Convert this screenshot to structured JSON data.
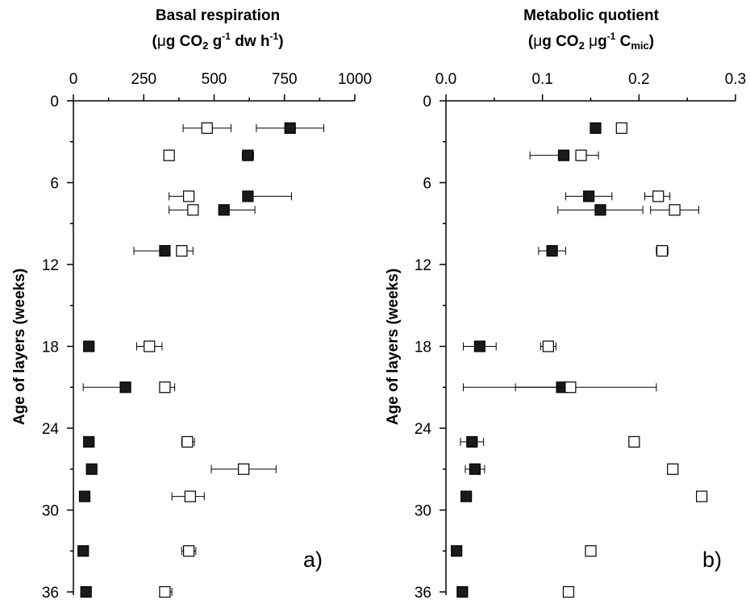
{
  "chart_data": [
    {
      "type": "scatter",
      "panel_label": "a)",
      "title": "Basal respiration",
      "units_line": {
        "open": "(",
        "mu": "μ",
        "g": "g CO",
        "sub2": "2",
        "g2": " g",
        "sup1": "-1",
        "rest": " dw h",
        "sup2": "-1",
        "close": ")"
      },
      "ylabel": "Age of layers (weeks)",
      "xlim": [
        0,
        1000
      ],
      "xticks": [
        "0",
        "250",
        "500",
        "750",
        "1000"
      ],
      "xtick_values": [
        0,
        250,
        500,
        750,
        1000
      ],
      "ylim": [
        0,
        36
      ],
      "yticks": [
        "0",
        "6",
        "12",
        "18",
        "24",
        "30",
        "36"
      ],
      "ytick_values": [
        0,
        6,
        12,
        18,
        24,
        30,
        36
      ],
      "x_axis_position": "top",
      "grid": false,
      "series": [
        {
          "marker": "filled-square",
          "points": [
            {
              "y": 2,
              "x": 770,
              "err": [
                650,
                890
              ]
            },
            {
              "y": 4,
              "x": 620,
              "err": [
                600,
                640
              ]
            },
            {
              "y": 7,
              "x": 620,
              "err": [
                620,
                775
              ]
            },
            {
              "y": 8,
              "x": 535,
              "err": [
                535,
                645
              ]
            },
            {
              "y": 11,
              "x": 325,
              "err": [
                215,
                325
              ]
            },
            {
              "y": 18,
              "x": 55,
              "err": [
                40,
                60
              ]
            },
            {
              "y": 21,
              "x": 185,
              "err": [
                35,
                185
              ]
            },
            {
              "y": 25,
              "x": 55,
              "err": null
            },
            {
              "y": 27,
              "x": 65,
              "err": null
            },
            {
              "y": 29,
              "x": 40,
              "err": null
            },
            {
              "y": 33,
              "x": 35,
              "err": null
            },
            {
              "y": 36,
              "x": 45,
              "err": null
            }
          ]
        },
        {
          "marker": "open-square",
          "points": [
            {
              "y": 2,
              "x": 475,
              "err": [
                390,
                560
              ]
            },
            {
              "y": 4,
              "x": 340,
              "err": null
            },
            {
              "y": 7,
              "x": 410,
              "err": [
                340,
                410
              ]
            },
            {
              "y": 8,
              "x": 425,
              "err": [
                340,
                425
              ]
            },
            {
              "y": 11,
              "x": 385,
              "err": [
                385,
                425
              ]
            },
            {
              "y": 18,
              "x": 270,
              "err": [
                225,
                315
              ]
            },
            {
              "y": 21,
              "x": 325,
              "err": [
                325,
                360
              ]
            },
            {
              "y": 25,
              "x": 405,
              "err": [
                385,
                430
              ]
            },
            {
              "y": 27,
              "x": 605,
              "err": [
                490,
                720
              ]
            },
            {
              "y": 29,
              "x": 415,
              "err": [
                350,
                465
              ]
            },
            {
              "y": 33,
              "x": 410,
              "err": [
                385,
                435
              ]
            },
            {
              "y": 36,
              "x": 325,
              "err": [
                310,
                350
              ]
            }
          ]
        }
      ]
    },
    {
      "type": "scatter",
      "panel_label": "b)",
      "title": "Metabolic quotient",
      "units_line": {
        "open": "(",
        "mu": "μ",
        "g": "g CO",
        "sub2": "2",
        "g2": " ",
        "mu2": "μ",
        "g3": "g",
        "sup1": "-1",
        "rest": " C",
        "sub3": "mic",
        "close": ")"
      },
      "ylabel": "Age of layers (weeks)",
      "xlim": [
        0,
        0.3
      ],
      "xticks": [
        "0.0",
        "0.1",
        "0.2",
        "0.3"
      ],
      "xtick_values": [
        0,
        0.1,
        0.2,
        0.3
      ],
      "ylim": [
        0,
        36
      ],
      "yticks": [
        "0",
        "6",
        "12",
        "18",
        "24",
        "30",
        "36"
      ],
      "ytick_values": [
        0,
        6,
        12,
        18,
        24,
        30,
        36
      ],
      "x_axis_position": "top",
      "grid": false,
      "series": [
        {
          "marker": "filled-square",
          "points": [
            {
              "y": 2,
              "x": 0.155,
              "err": [
                0.152,
                0.158
              ]
            },
            {
              "y": 4,
              "x": 0.122,
              "err": [
                0.087,
                0.122
              ]
            },
            {
              "y": 7,
              "x": 0.148,
              "err": [
                0.124,
                0.172
              ]
            },
            {
              "y": 8,
              "x": 0.16,
              "err": [
                0.116,
                0.204
              ]
            },
            {
              "y": 11,
              "x": 0.11,
              "err": [
                0.096,
                0.124
              ]
            },
            {
              "y": 18,
              "x": 0.035,
              "err": [
                0.018,
                0.052
              ]
            },
            {
              "y": 21,
              "x": 0.12,
              "err": [
                0.018,
                0.12
              ]
            },
            {
              "y": 25,
              "x": 0.027,
              "err": [
                0.015,
                0.039
              ]
            },
            {
              "y": 27,
              "x": 0.03,
              "err": [
                0.02,
                0.04
              ]
            },
            {
              "y": 29,
              "x": 0.021,
              "err": [
                0.016,
                0.026
              ]
            },
            {
              "y": 33,
              "x": 0.011,
              "err": null
            },
            {
              "y": 36,
              "x": 0.017,
              "err": [
                0.013,
                0.021
              ]
            }
          ]
        },
        {
          "marker": "open-square",
          "points": [
            {
              "y": 2,
              "x": 0.182,
              "err": null
            },
            {
              "y": 4,
              "x": 0.14,
              "err": [
                0.14,
                0.158
              ]
            },
            {
              "y": 7,
              "x": 0.22,
              "err": [
                0.206,
                0.232
              ]
            },
            {
              "y": 8,
              "x": 0.237,
              "err": [
                0.212,
                0.262
              ]
            },
            {
              "y": 11,
              "x": 0.224,
              "err": [
                0.218,
                0.23
              ]
            },
            {
              "y": 18,
              "x": 0.106,
              "err": [
                0.098,
                0.114
              ]
            },
            {
              "y": 21,
              "x": 0.129,
              "err": [
                0.072,
                0.218
              ]
            },
            {
              "y": 25,
              "x": 0.195,
              "err": [
                0.191,
                0.199
              ]
            },
            {
              "y": 27,
              "x": 0.235,
              "err": [
                0.231,
                0.239
              ]
            },
            {
              "y": 29,
              "x": 0.265,
              "err": null
            },
            {
              "y": 33,
              "x": 0.15,
              "err": null
            },
            {
              "y": 36,
              "x": 0.127,
              "err": null
            }
          ]
        }
      ]
    }
  ]
}
